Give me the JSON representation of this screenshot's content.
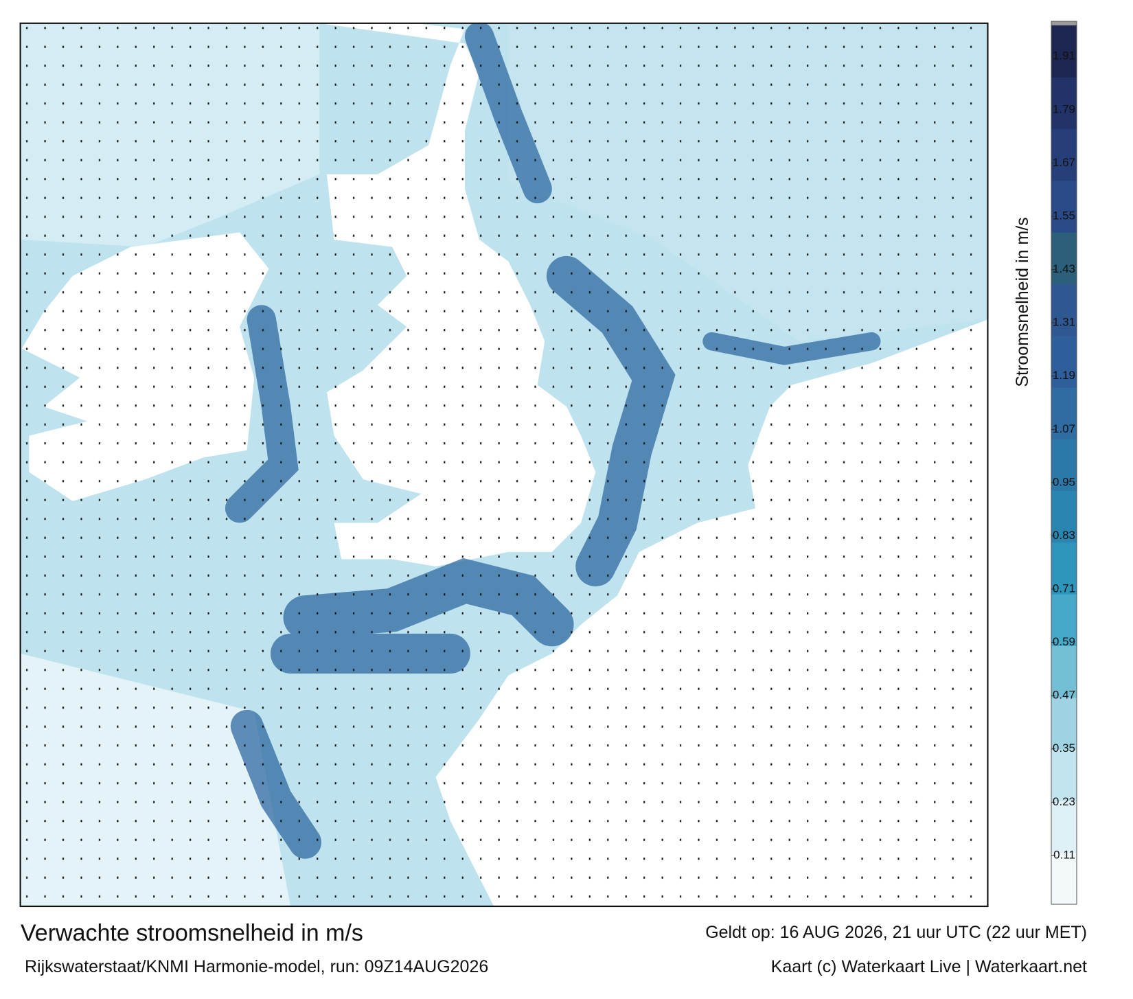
{
  "header": {
    "title": "Verwachte stroomsnelheid in m/s",
    "model": "Rijkswaterstaat/KNMI Harmonie-model, run: 09Z14AUG2026",
    "valid": "Geldt op: 16 AUG 2026, 21 uur UTC (22 uur MET)",
    "credit": "Kaart (c) Waterkaart Live | Waterkaart.net"
  },
  "colorbar": {
    "label": "Stroomsnelheid in m/s",
    "lim": [
      0,
      1.98
    ],
    "ticks": [
      0.11,
      0.23,
      0.35,
      0.47,
      0.59,
      0.71,
      0.83,
      0.95,
      1.07,
      1.19,
      1.31,
      1.43,
      1.55,
      1.67,
      1.79,
      1.91
    ],
    "colors": [
      "#f3f9fb",
      "#dff0f6",
      "#c2e4ee",
      "#9fd3e4",
      "#73bfd6",
      "#47a9ca",
      "#2e96bb",
      "#2b85b1",
      "#2c78a8",
      "#2f6ca1",
      "#2f5f9a",
      "#2f5893",
      "#2c5f7a",
      "#2a4b88",
      "#263f79",
      "#22336a",
      "#1d2650"
    ]
  }
}
